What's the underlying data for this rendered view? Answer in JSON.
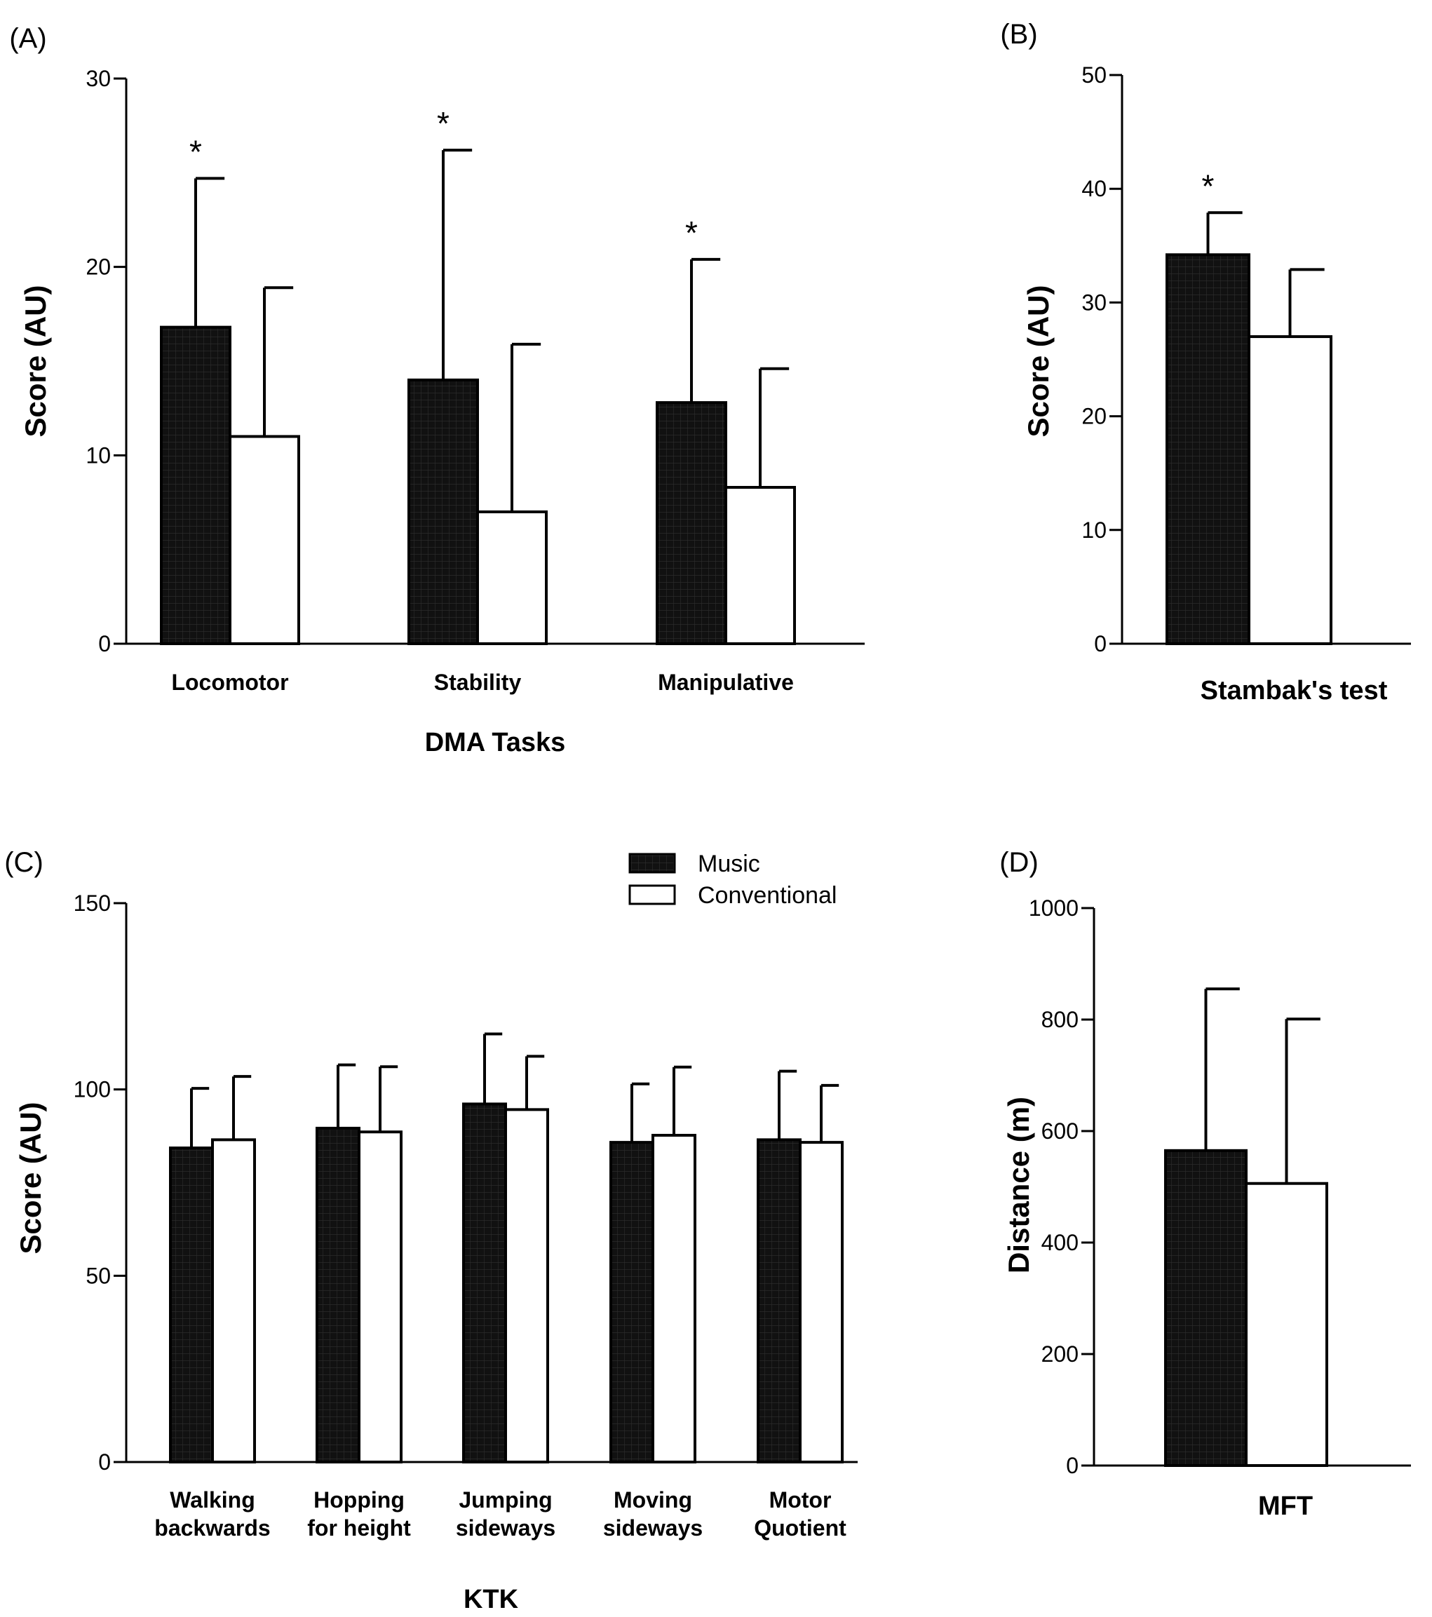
{
  "legend": {
    "music": "Music",
    "conventional": "Conventional"
  },
  "colors": {
    "music": "#141414",
    "conventional": "#ffffff",
    "stroke": "#000000"
  },
  "chart_data": [
    {
      "panel": "(A)",
      "type": "bar",
      "xlabel": "DMA Tasks",
      "ylabel": "Score (AU)",
      "ylim": [
        0,
        30
      ],
      "yticks": [
        0,
        10,
        20,
        30
      ],
      "categories": [
        [
          "Locomotor"
        ],
        [
          "Stability"
        ],
        [
          "Manipulative"
        ]
      ],
      "series": [
        {
          "name": "Music",
          "values": [
            16.8,
            14.0,
            12.8
          ],
          "errors": [
            7.9,
            12.2,
            7.6
          ]
        },
        {
          "name": "Conventional",
          "values": [
            11.0,
            7.0,
            8.3
          ],
          "errors": [
            7.9,
            8.9,
            6.3
          ]
        }
      ],
      "significance": [
        "*",
        "*",
        "*"
      ]
    },
    {
      "panel": "(B)",
      "type": "bar",
      "xlabel": "Stambak's test",
      "ylabel": "Score (AU)",
      "ylim": [
        0,
        50
      ],
      "yticks": [
        0,
        10,
        20,
        30,
        40,
        50
      ],
      "categories": [
        [
          ""
        ]
      ],
      "series": [
        {
          "name": "Music",
          "values": [
            34.2
          ],
          "errors": [
            3.7
          ]
        },
        {
          "name": "Conventional",
          "values": [
            27.0
          ],
          "errors": [
            5.9
          ]
        }
      ],
      "significance": [
        "*"
      ]
    },
    {
      "panel": "(C)",
      "type": "bar",
      "xlabel": "KTK",
      "ylabel": "Score (AU)",
      "ylim": [
        0,
        150
      ],
      "yticks": [
        0,
        50,
        100,
        150
      ],
      "categories": [
        [
          "Walking",
          "backwards"
        ],
        [
          "Hopping",
          "for height"
        ],
        [
          "Jumping",
          "sideways"
        ],
        [
          "Moving",
          "sideways"
        ],
        [
          "Motor",
          "Quotient"
        ]
      ],
      "series": [
        {
          "name": "Music",
          "values": [
            84.3,
            89.6,
            96.1,
            85.8,
            86.5
          ],
          "errors": [
            16.0,
            17.0,
            18.8,
            15.7,
            18.4
          ]
        },
        {
          "name": "Conventional",
          "values": [
            86.5,
            88.6,
            94.6,
            87.7,
            85.8
          ],
          "errors": [
            17.0,
            17.5,
            14.3,
            18.3,
            15.3
          ]
        }
      ],
      "significance": [
        "",
        "",
        "",
        "",
        ""
      ]
    },
    {
      "panel": "(D)",
      "type": "bar",
      "xlabel": "MFT",
      "ylabel": "Distance (m)",
      "ylim": [
        0,
        1000
      ],
      "yticks": [
        0,
        200,
        400,
        600,
        800,
        1000
      ],
      "categories": [
        [
          ""
        ]
      ],
      "series": [
        {
          "name": "Music",
          "values": [
            565
          ],
          "errors": [
            290
          ]
        },
        {
          "name": "Conventional",
          "values": [
            506
          ],
          "errors": [
            295
          ]
        }
      ],
      "significance": [
        ""
      ]
    }
  ]
}
